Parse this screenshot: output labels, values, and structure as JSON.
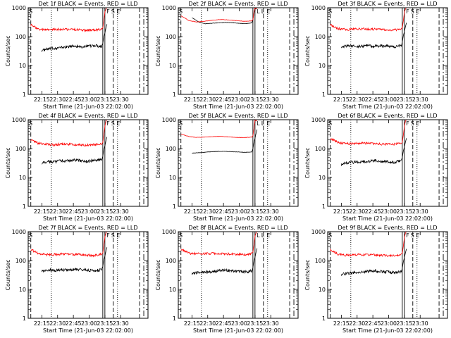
{
  "chart_data": [
    {
      "type": "line",
      "title": "Det 1f BLACK = Events, RED = LLD",
      "ylabel": "Counts/sec",
      "xlabel": "Start Time (21-Jun-03 22:02:00)",
      "ylim": [
        1,
        1000
      ],
      "yscale": "log",
      "ytick_labels": [
        "1",
        "10",
        "100",
        "1000"
      ],
      "xtick_labels": [
        "22:15",
        "22:30",
        "22:45",
        "23:00",
        "23:15",
        "23:30"
      ],
      "flag_labels": [
        "S",
        "F",
        "S",
        "E"
      ],
      "series": [
        {
          "name": "Events",
          "color": "#000000",
          "values": [
            33,
            37,
            40,
            42,
            45,
            48,
            44,
            46,
            50,
            45
          ]
        },
        {
          "name": "LLD",
          "color": "#ff0000",
          "values": [
            250,
            180,
            170,
            175,
            180,
            178,
            172,
            165,
            168,
            180
          ]
        }
      ]
    },
    {
      "type": "line",
      "title": "Det 2f BLACK = Events, RED = LLD",
      "ylabel": "Counts/sec",
      "xlabel": "Start Time (21-Jun-03 22:02:00)",
      "ylim": [
        1,
        1000
      ],
      "yscale": "log",
      "ytick_labels": [
        "1",
        "10",
        "100",
        "1000"
      ],
      "xtick_labels": [
        "22:15",
        "22:30",
        "22:45",
        "23:00",
        "23:15",
        "23:30"
      ],
      "flag_labels": [
        "S",
        "L",
        "L",
        "E"
      ],
      "series": [
        {
          "name": "Events",
          "color": "#000000",
          "values": [
            450,
            320,
            280,
            290,
            300,
            310,
            305,
            290,
            280,
            300
          ]
        },
        {
          "name": "LLD",
          "color": "#ff0000",
          "values": [
            520,
            360,
            320,
            340,
            370,
            390,
            380,
            360,
            340,
            350
          ]
        }
      ]
    },
    {
      "type": "line",
      "title": "Det 3f BLACK = Events, RED = LLD",
      "ylabel": "Counts/sec",
      "xlabel": "Start Time (21-Jun-03 22:02:00)",
      "ylim": [
        1,
        1000
      ],
      "yscale": "log",
      "ytick_labels": [
        "1",
        "10",
        "100",
        "1000"
      ],
      "xtick_labels": [
        "22:15",
        "22:30",
        "22:45",
        "23:00",
        "23:15",
        "23:30"
      ],
      "flag_labels": [
        "S",
        "F",
        "S",
        "E"
      ],
      "series": [
        {
          "name": "Events",
          "color": "#000000",
          "values": [
            45,
            48,
            46,
            47,
            49,
            46,
            48,
            47,
            45,
            50
          ]
        },
        {
          "name": "LLD",
          "color": "#ff0000",
          "values": [
            260,
            190,
            175,
            180,
            185,
            182,
            178,
            172,
            170,
            180
          ]
        }
      ]
    },
    {
      "type": "line",
      "title": "Det 4f BLACK = Events, RED = LLD",
      "ylabel": "Counts/sec",
      "xlabel": "Start Time (21-Jun-03 22:02:00)",
      "ylim": [
        1,
        1000
      ],
      "yscale": "log",
      "ytick_labels": [
        "1",
        "10",
        "100",
        "1000"
      ],
      "xtick_labels": [
        "22:15",
        "22:30",
        "22:45",
        "23:00",
        "23:15",
        "23:30"
      ],
      "flag_labels": [
        "S",
        "F",
        "S",
        "E"
      ],
      "series": [
        {
          "name": "Events",
          "color": "#000000",
          "values": [
            32,
            36,
            35,
            38,
            37,
            40,
            38,
            36,
            39,
            42
          ]
        },
        {
          "name": "LLD",
          "color": "#ff0000",
          "values": [
            200,
            150,
            140,
            135,
            145,
            140,
            138,
            130,
            135,
            150
          ]
        }
      ]
    },
    {
      "type": "line",
      "title": "Det 5f BLACK = Events, RED = LLD",
      "ylabel": "Counts/sec",
      "xlabel": "Start Time (21-Jun-03 22:02:00)",
      "ylim": [
        1,
        1000
      ],
      "yscale": "log",
      "ytick_labels": [
        "1",
        "10",
        "100",
        "1000"
      ],
      "xtick_labels": [
        "22:15",
        "22:30",
        "22:45",
        "23:00",
        "23:15",
        "23:30"
      ],
      "flag_labels": [
        "S",
        "L",
        "L",
        "E"
      ],
      "series": [
        {
          "name": "Events",
          "color": "#000000",
          "values": [
            70,
            72,
            75,
            78,
            80,
            80,
            78,
            76,
            74,
            76
          ]
        },
        {
          "name": "LLD",
          "color": "#ff0000",
          "values": [
            320,
            260,
            245,
            250,
            260,
            265,
            255,
            245,
            240,
            250
          ]
        }
      ]
    },
    {
      "type": "line",
      "title": "Det 6f BLACK = Events, RED = LLD",
      "ylabel": "Counts/sec",
      "xlabel": "Start Time (21-Jun-03 22:02:00)",
      "ylim": [
        1,
        1000
      ],
      "yscale": "log",
      "ytick_labels": [
        "1",
        "10",
        "100",
        "1000"
      ],
      "xtick_labels": [
        "22:15",
        "22:30",
        "22:45",
        "23:00",
        "23:15",
        "23:30"
      ],
      "flag_labels": [
        "S",
        "F",
        "S",
        "E"
      ],
      "series": [
        {
          "name": "Events",
          "color": "#000000",
          "values": [
            28,
            32,
            34,
            35,
            36,
            38,
            36,
            35,
            34,
            38
          ]
        },
        {
          "name": "LLD",
          "color": "#ff0000",
          "values": [
            220,
            160,
            150,
            148,
            155,
            150,
            145,
            140,
            142,
            150
          ]
        }
      ]
    },
    {
      "type": "line",
      "title": "Det 7f BLACK = Events, RED = LLD",
      "ylabel": "Counts/sec",
      "xlabel": "Start Time (21-Jun-03 22:02:00)",
      "ylim": [
        1,
        1000
      ],
      "yscale": "log",
      "ytick_labels": [
        "1",
        "10",
        "100",
        "1000"
      ],
      "xtick_labels": [
        "22:15",
        "22:30",
        "22:45",
        "23:00",
        "23:15",
        "23:30"
      ],
      "flag_labels": [
        "S",
        "F",
        "S",
        "E"
      ],
      "series": [
        {
          "name": "Events",
          "color": "#000000",
          "values": [
            45,
            47,
            46,
            48,
            47,
            49,
            48,
            46,
            45,
            48
          ]
        },
        {
          "name": "LLD",
          "color": "#ff0000",
          "values": [
            240,
            170,
            160,
            162,
            168,
            165,
            160,
            155,
            150,
            165
          ]
        }
      ]
    },
    {
      "type": "line",
      "title": "Det 8f BLACK = Events, RED = LLD",
      "ylabel": "Counts/sec",
      "xlabel": "Start Time (21-Jun-03 22:02:00)",
      "ylim": [
        1,
        1000
      ],
      "yscale": "log",
      "ytick_labels": [
        "1",
        "10",
        "100",
        "1000"
      ],
      "xtick_labels": [
        "22:15",
        "22:30",
        "22:45",
        "23:00",
        "23:15",
        "23:30"
      ],
      "flag_labels": [
        "S",
        "L",
        "L",
        "E"
      ],
      "series": [
        {
          "name": "Events",
          "color": "#000000",
          "values": [
            36,
            38,
            40,
            42,
            44,
            46,
            44,
            42,
            40,
            44
          ]
        },
        {
          "name": "LLD",
          "color": "#ff0000",
          "values": [
            250,
            180,
            170,
            172,
            178,
            175,
            170,
            165,
            160,
            175
          ]
        }
      ]
    },
    {
      "type": "line",
      "title": "Det 9f BLACK = Events, RED = LLD",
      "ylabel": "Counts/sec",
      "xlabel": "Start Time (21-Jun-03 22:02:00)",
      "ylim": [
        1,
        1000
      ],
      "yscale": "log",
      "ytick_labels": [
        "1",
        "10",
        "100",
        "1000"
      ],
      "xtick_labels": [
        "22:15",
        "22:30",
        "22:45",
        "23:00",
        "23:15",
        "23:30"
      ],
      "flag_labels": [
        "S",
        "F",
        "S",
        "E"
      ],
      "series": [
        {
          "name": "Events",
          "color": "#000000",
          "values": [
            33,
            36,
            38,
            40,
            42,
            44,
            42,
            40,
            38,
            42
          ]
        },
        {
          "name": "LLD",
          "color": "#ff0000",
          "values": [
            230,
            165,
            155,
            158,
            160,
            158,
            155,
            150,
            148,
            160
          ]
        }
      ]
    }
  ]
}
